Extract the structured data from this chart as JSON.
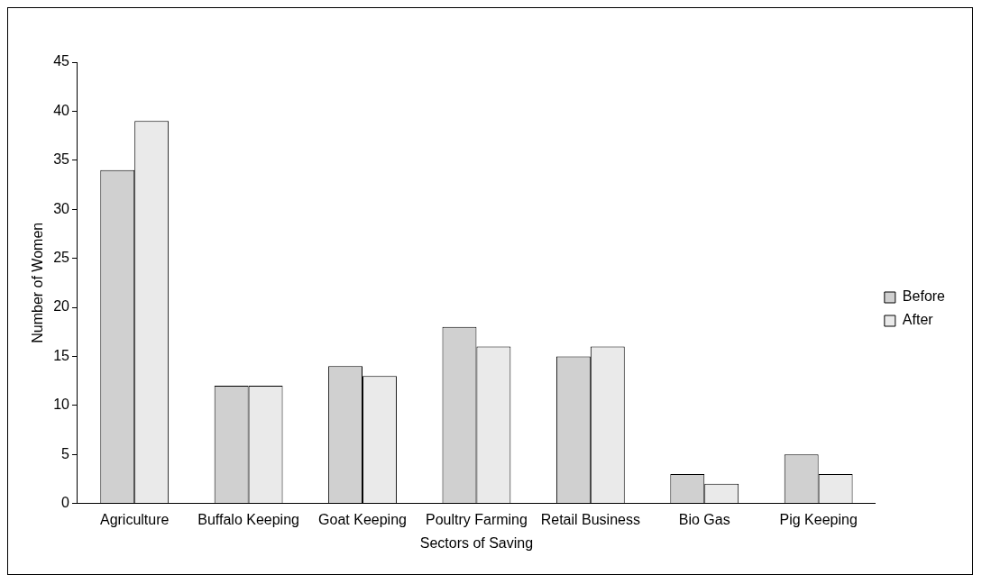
{
  "chart_data": {
    "type": "bar",
    "xlabel": "Sectors of Saving",
    "ylabel": "Number of Women",
    "categories": [
      "Agriculture",
      "Buffalo Keeping",
      "Goat Keeping",
      "Poultry Farming",
      "Retail Business",
      "Bio Gas",
      "Pig Keeping"
    ],
    "series": [
      {
        "name": "Before",
        "color": "#d0d0d0",
        "values": [
          34,
          12,
          14,
          18,
          15,
          3,
          5
        ]
      },
      {
        "name": "After",
        "color": "#eaeaea",
        "values": [
          39,
          12,
          13,
          16,
          16,
          2,
          3
        ]
      }
    ],
    "ylim": [
      0,
      45
    ],
    "yticks": [
      0,
      5,
      10,
      15,
      20,
      25,
      30,
      35,
      40,
      45
    ],
    "grid": false,
    "legend": "right"
  }
}
